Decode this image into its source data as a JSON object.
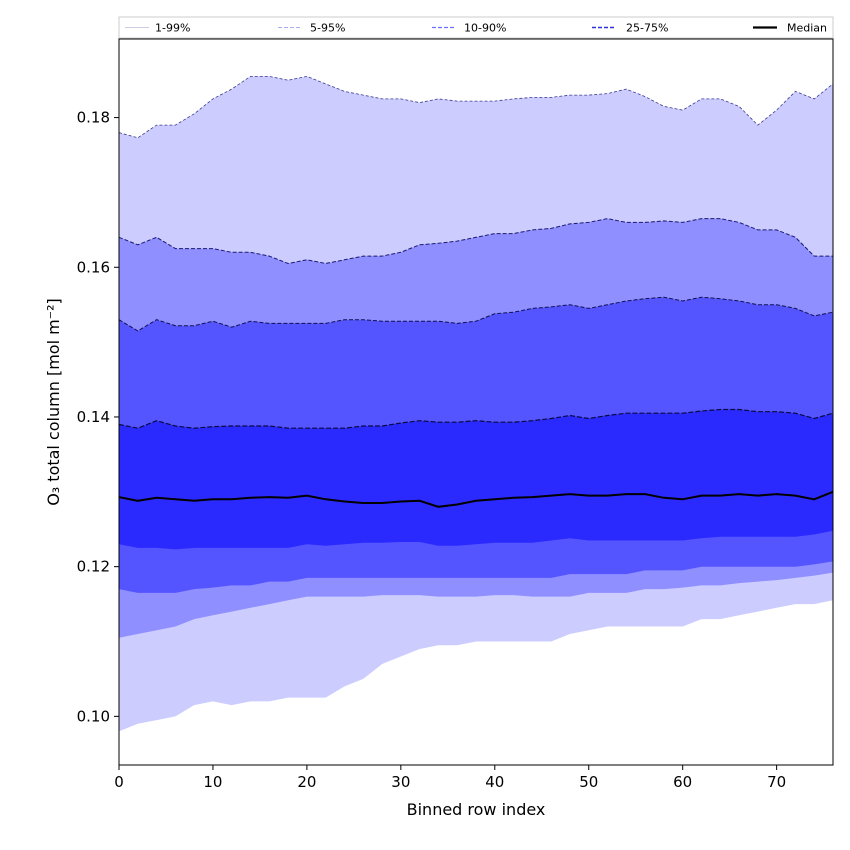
{
  "chart_data": {
    "type": "area",
    "title": "",
    "xlabel": "Binned row index",
    "ylabel": "O₃ total column [mol m⁻²]",
    "xlim": [
      0,
      76
    ],
    "ylim": [
      0.0935,
      0.1905
    ],
    "xticks": [
      0,
      10,
      20,
      30,
      40,
      50,
      60,
      70
    ],
    "yticks": [
      0.1,
      0.12,
      0.14,
      0.16,
      0.18
    ],
    "ytick_labels": [
      "0.10",
      "0.12",
      "0.14",
      "0.16",
      "0.18"
    ],
    "grid": false,
    "legend_position": "top",
    "colors": {
      "band_1_99": "#ccccff",
      "band_5_95": "#8f8fff",
      "band_10_90": "#5555ff",
      "band_25_75": "#2a2aff",
      "median": "#000000"
    },
    "legend": [
      {
        "label": "1-99%",
        "key": "p1_99",
        "color": "#bbbbdd",
        "dash": "solid",
        "width": 0.8
      },
      {
        "label": "5-95%",
        "key": "p5_95",
        "color": "#9090ee",
        "dash": "dashed",
        "width": 0.8
      },
      {
        "label": "10-90%",
        "key": "p10_90",
        "color": "#7070ff",
        "dash": "dashed",
        "width": 1.2
      },
      {
        "label": "25-75%",
        "key": "p25_75",
        "color": "#3030dd",
        "dash": "dashed",
        "width": 1.6
      },
      {
        "label": "Median",
        "key": "median",
        "color": "#000000",
        "dash": "solid",
        "width": 2.2
      }
    ],
    "series": [
      {
        "name": "p1",
        "x": [
          0,
          2,
          4,
          6,
          8,
          10,
          12,
          14,
          16,
          18,
          20,
          22,
          24,
          26,
          28,
          30,
          32,
          34,
          36,
          38,
          40,
          42,
          44,
          46,
          48,
          50,
          52,
          54,
          56,
          58,
          60,
          62,
          64,
          66,
          68,
          70,
          72,
          74,
          76
        ],
        "values": [
          0.098,
          0.099,
          0.0995,
          0.1,
          0.1015,
          0.102,
          0.1015,
          0.102,
          0.102,
          0.1025,
          0.1025,
          0.1025,
          0.104,
          0.105,
          0.107,
          0.108,
          0.109,
          0.1095,
          0.1095,
          0.11,
          0.11,
          0.11,
          0.11,
          0.11,
          0.111,
          0.1115,
          0.112,
          0.112,
          0.112,
          0.112,
          0.112,
          0.113,
          0.113,
          0.1135,
          0.114,
          0.1145,
          0.115,
          0.115,
          0.1155
        ]
      },
      {
        "name": "p5",
        "x": [
          0,
          2,
          4,
          6,
          8,
          10,
          12,
          14,
          16,
          18,
          20,
          22,
          24,
          26,
          28,
          30,
          32,
          34,
          36,
          38,
          40,
          42,
          44,
          46,
          48,
          50,
          52,
          54,
          56,
          58,
          60,
          62,
          64,
          66,
          68,
          70,
          72,
          74,
          76
        ],
        "values": [
          0.1105,
          0.111,
          0.1115,
          0.112,
          0.113,
          0.1135,
          0.114,
          0.1145,
          0.115,
          0.1155,
          0.116,
          0.116,
          0.116,
          0.116,
          0.1162,
          0.1162,
          0.1162,
          0.116,
          0.116,
          0.116,
          0.1162,
          0.1162,
          0.116,
          0.116,
          0.116,
          0.1165,
          0.1165,
          0.1165,
          0.117,
          0.117,
          0.1172,
          0.1175,
          0.1175,
          0.1178,
          0.118,
          0.1182,
          0.1185,
          0.1188,
          0.1192
        ]
      },
      {
        "name": "p10",
        "x": [
          0,
          2,
          4,
          6,
          8,
          10,
          12,
          14,
          16,
          18,
          20,
          22,
          24,
          26,
          28,
          30,
          32,
          34,
          36,
          38,
          40,
          42,
          44,
          46,
          48,
          50,
          52,
          54,
          56,
          58,
          60,
          62,
          64,
          66,
          68,
          70,
          72,
          74,
          76
        ],
        "values": [
          0.117,
          0.1165,
          0.1165,
          0.1165,
          0.117,
          0.1172,
          0.1175,
          0.1175,
          0.118,
          0.118,
          0.1185,
          0.1185,
          0.1185,
          0.1185,
          0.1185,
          0.1185,
          0.1185,
          0.1185,
          0.1185,
          0.1185,
          0.1185,
          0.1185,
          0.1185,
          0.1185,
          0.119,
          0.119,
          0.119,
          0.119,
          0.1195,
          0.1195,
          0.1195,
          0.12,
          0.12,
          0.12,
          0.12,
          0.12,
          0.12,
          0.1203,
          0.1207
        ]
      },
      {
        "name": "p25",
        "x": [
          0,
          2,
          4,
          6,
          8,
          10,
          12,
          14,
          16,
          18,
          20,
          22,
          24,
          26,
          28,
          30,
          32,
          34,
          36,
          38,
          40,
          42,
          44,
          46,
          48,
          50,
          52,
          54,
          56,
          58,
          60,
          62,
          64,
          66,
          68,
          70,
          72,
          74,
          76
        ],
        "values": [
          0.123,
          0.1225,
          0.1225,
          0.1223,
          0.1225,
          0.1225,
          0.1225,
          0.1225,
          0.1225,
          0.1225,
          0.123,
          0.1228,
          0.123,
          0.1232,
          0.1232,
          0.1233,
          0.1233,
          0.1228,
          0.1228,
          0.123,
          0.1232,
          0.1232,
          0.1232,
          0.1235,
          0.1238,
          0.1235,
          0.1235,
          0.1235,
          0.1235,
          0.1235,
          0.1235,
          0.1238,
          0.124,
          0.124,
          0.124,
          0.124,
          0.124,
          0.1243,
          0.1248
        ]
      },
      {
        "name": "median",
        "x": [
          0,
          2,
          4,
          6,
          8,
          10,
          12,
          14,
          16,
          18,
          20,
          22,
          24,
          26,
          28,
          30,
          32,
          34,
          36,
          38,
          40,
          42,
          44,
          46,
          48,
          50,
          52,
          54,
          56,
          58,
          60,
          62,
          64,
          66,
          68,
          70,
          72,
          74,
          76
        ],
        "values": [
          0.1293,
          0.1288,
          0.1292,
          0.129,
          0.1288,
          0.129,
          0.129,
          0.1292,
          0.1293,
          0.1292,
          0.1295,
          0.129,
          0.1287,
          0.1285,
          0.1285,
          0.1287,
          0.1288,
          0.128,
          0.1283,
          0.1288,
          0.129,
          0.1292,
          0.1293,
          0.1295,
          0.1297,
          0.1295,
          0.1295,
          0.1297,
          0.1297,
          0.1292,
          0.129,
          0.1295,
          0.1295,
          0.1297,
          0.1295,
          0.1297,
          0.1295,
          0.129,
          0.13
        ]
      },
      {
        "name": "p75",
        "x": [
          0,
          2,
          4,
          6,
          8,
          10,
          12,
          14,
          16,
          18,
          20,
          22,
          24,
          26,
          28,
          30,
          32,
          34,
          36,
          38,
          40,
          42,
          44,
          46,
          48,
          50,
          52,
          54,
          56,
          58,
          60,
          62,
          64,
          66,
          68,
          70,
          72,
          74,
          76
        ],
        "values": [
          0.139,
          0.1385,
          0.1395,
          0.1388,
          0.1385,
          0.1387,
          0.1388,
          0.1388,
          0.1388,
          0.1385,
          0.1385,
          0.1385,
          0.1385,
          0.1388,
          0.1388,
          0.1392,
          0.1395,
          0.1393,
          0.1393,
          0.1395,
          0.1393,
          0.1393,
          0.1395,
          0.1398,
          0.1402,
          0.1398,
          0.1402,
          0.1405,
          0.1405,
          0.1405,
          0.1405,
          0.1408,
          0.141,
          0.141,
          0.1407,
          0.1407,
          0.1405,
          0.1398,
          0.1405
        ]
      },
      {
        "name": "p90",
        "x": [
          0,
          2,
          4,
          6,
          8,
          10,
          12,
          14,
          16,
          18,
          20,
          22,
          24,
          26,
          28,
          30,
          32,
          34,
          36,
          38,
          40,
          42,
          44,
          46,
          48,
          50,
          52,
          54,
          56,
          58,
          60,
          62,
          64,
          66,
          68,
          70,
          72,
          74,
          76
        ],
        "values": [
          0.153,
          0.1515,
          0.153,
          0.1522,
          0.1522,
          0.1528,
          0.152,
          0.1528,
          0.1525,
          0.1525,
          0.1525,
          0.1525,
          0.153,
          0.153,
          0.1528,
          0.1528,
          0.1528,
          0.1528,
          0.1525,
          0.1528,
          0.1538,
          0.154,
          0.1545,
          0.1547,
          0.155,
          0.1545,
          0.155,
          0.1555,
          0.1558,
          0.156,
          0.1555,
          0.156,
          0.1558,
          0.1555,
          0.155,
          0.155,
          0.1545,
          0.1535,
          0.154
        ]
      },
      {
        "name": "p95",
        "x": [
          0,
          2,
          4,
          6,
          8,
          10,
          12,
          14,
          16,
          18,
          20,
          22,
          24,
          26,
          28,
          30,
          32,
          34,
          36,
          38,
          40,
          42,
          44,
          46,
          48,
          50,
          52,
          54,
          56,
          58,
          60,
          62,
          64,
          66,
          68,
          70,
          72,
          74,
          76
        ],
        "values": [
          0.164,
          0.163,
          0.164,
          0.1625,
          0.1625,
          0.1625,
          0.162,
          0.162,
          0.1615,
          0.1605,
          0.161,
          0.1605,
          0.161,
          0.1615,
          0.1615,
          0.162,
          0.163,
          0.1632,
          0.1635,
          0.164,
          0.1645,
          0.1645,
          0.165,
          0.1652,
          0.1658,
          0.166,
          0.1665,
          0.166,
          0.166,
          0.1662,
          0.166,
          0.1665,
          0.1665,
          0.166,
          0.165,
          0.165,
          0.164,
          0.1615,
          0.1615
        ]
      },
      {
        "name": "p99",
        "x": [
          0,
          2,
          4,
          6,
          8,
          10,
          12,
          14,
          16,
          18,
          20,
          22,
          24,
          26,
          28,
          30,
          32,
          34,
          36,
          38,
          40,
          42,
          44,
          46,
          48,
          50,
          52,
          54,
          56,
          58,
          60,
          62,
          64,
          66,
          68,
          70,
          72,
          74,
          76
        ],
        "values": [
          0.178,
          0.1773,
          0.179,
          0.179,
          0.1805,
          0.1825,
          0.1838,
          0.1855,
          0.1855,
          0.185,
          0.1855,
          0.1845,
          0.1835,
          0.183,
          0.1825,
          0.1825,
          0.182,
          0.1825,
          0.1822,
          0.1822,
          0.1822,
          0.1825,
          0.1827,
          0.1827,
          0.183,
          0.183,
          0.1832,
          0.1838,
          0.1828,
          0.1815,
          0.181,
          0.1825,
          0.1825,
          0.1815,
          0.179,
          0.181,
          0.1835,
          0.1825,
          0.1845
        ]
      }
    ]
  }
}
